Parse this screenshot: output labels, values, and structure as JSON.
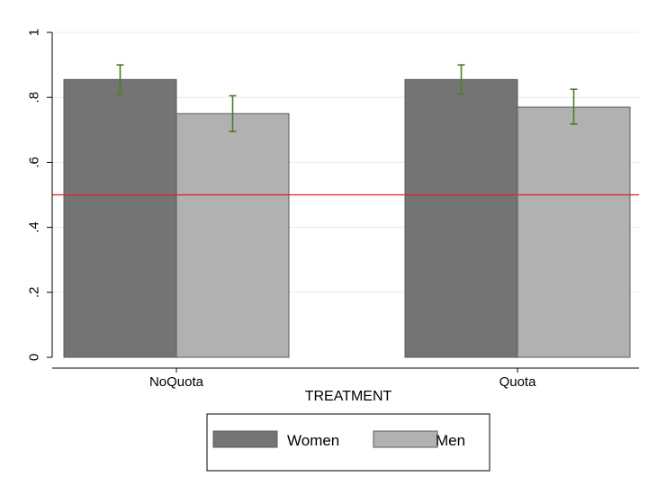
{
  "chart_data": {
    "type": "bar",
    "title": "",
    "xlabel": "TREATMENT",
    "ylabel": "",
    "ylim": [
      0,
      1
    ],
    "yticks": [
      0,
      0.2,
      0.4,
      0.6,
      0.8,
      1
    ],
    "ytick_labels": [
      "0",
      ".2",
      ".4",
      ".6",
      ".8",
      "1"
    ],
    "categories": [
      "NoQuota",
      "Quota"
    ],
    "series": [
      {
        "name": "Women",
        "values": [
          0.855,
          0.855
        ],
        "ci_low": [
          0.81,
          0.81
        ],
        "ci_high": [
          0.9,
          0.9
        ],
        "color": "#747474"
      },
      {
        "name": "Men",
        "values": [
          0.75,
          0.77
        ],
        "ci_low": [
          0.695,
          0.718
        ],
        "ci_high": [
          0.805,
          0.825
        ],
        "color": "#b1b1b1"
      }
    ],
    "reference_line": {
      "value": 0.5,
      "color": "#e0201e"
    },
    "error_bar_color": "#4f7a28",
    "grid": true,
    "grid_color": "#eaeaea",
    "legend_position": "bottom-center"
  }
}
